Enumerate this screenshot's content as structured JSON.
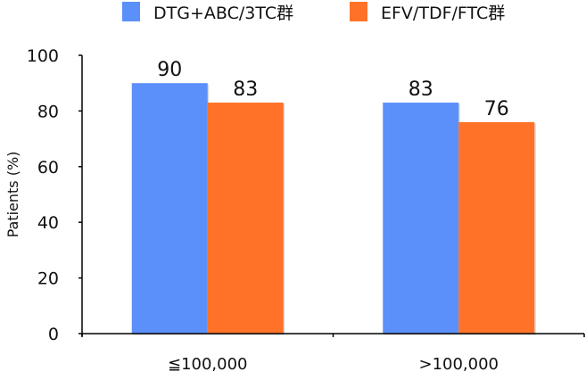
{
  "chart_data": {
    "type": "bar",
    "title": "",
    "xlabel": "",
    "ylabel": "Patients (%)",
    "ylim": [
      0,
      100
    ],
    "yticks": [
      0,
      20,
      40,
      60,
      80,
      100
    ],
    "categories": [
      "≦100,000",
      ">100,000"
    ],
    "series": [
      {
        "name": "DTG+ABC/3TC群",
        "color": "#5b8ffa",
        "values": [
          90,
          83
        ]
      },
      {
        "name": "EFV/TDF/FTC群",
        "color": "#ff7228",
        "values": [
          83,
          76
        ]
      }
    ],
    "data_labels": true,
    "grid": false,
    "legend_position": "top-center"
  }
}
